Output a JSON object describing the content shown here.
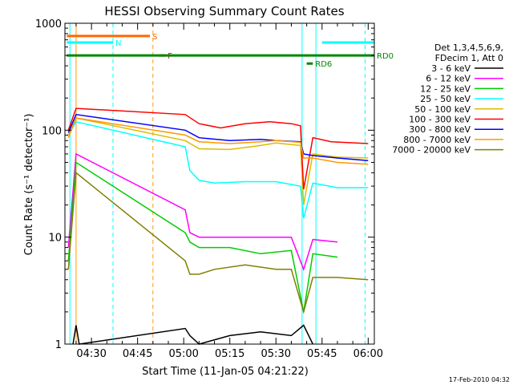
{
  "chart_data": {
    "type": "line",
    "title": "HESSI Observing Summary Count Rates",
    "xlabel": "Start Time (11-Jan-05 04:21:22)",
    "ylabel": "Count Rate (s⁻¹ detector⁻¹)",
    "x_scale": "time",
    "x_range": [
      "04:21:22",
      "06:02:00"
    ],
    "x_ticks": [
      "04:30",
      "04:45",
      "05:00",
      "05:15",
      "05:30",
      "05:45",
      "06:00"
    ],
    "y_scale": "log",
    "y_range": [
      1,
      1000
    ],
    "y_ticks": [
      "1",
      "10",
      "100",
      "1000"
    ],
    "legend_header": [
      "Det 1,3,4,5,6,9,",
      "FDecim 1, Att 0"
    ],
    "legend_position": "right",
    "series": [
      {
        "name": "3 - 6 keV",
        "color": "#000000",
        "points": [
          [
            "04:24:00",
            1.0
          ],
          [
            "04:25:00",
            1.5
          ],
          [
            "04:26:00",
            1.0
          ],
          [
            "05:00:30",
            1.4
          ],
          [
            "05:02:00",
            1.2
          ],
          [
            "05:05:00",
            1.0
          ],
          [
            "05:15:00",
            1.2
          ],
          [
            "05:25:00",
            1.3
          ],
          [
            "05:35:00",
            1.2
          ],
          [
            "05:39:00",
            1.5
          ],
          [
            "05:42:00",
            1.0
          ]
        ]
      },
      {
        "name": "6 - 12 keV",
        "color": "#ff00ff",
        "points": [
          [
            "04:22:30",
            8
          ],
          [
            "04:25:00",
            60
          ],
          [
            "05:00:30",
            18
          ],
          [
            "05:02:00",
            11
          ],
          [
            "05:05:00",
            10
          ],
          [
            "05:15:00",
            10
          ],
          [
            "05:25:00",
            10
          ],
          [
            "05:35:00",
            10
          ],
          [
            "05:39:00",
            5
          ],
          [
            "05:42:00",
            9.5
          ],
          [
            "05:50:00",
            9
          ]
        ]
      },
      {
        "name": "12 - 25 keV",
        "color": "#00cc00",
        "points": [
          [
            "04:22:30",
            6
          ],
          [
            "04:25:00",
            50
          ],
          [
            "05:00:30",
            11
          ],
          [
            "05:02:00",
            9
          ],
          [
            "05:05:00",
            8
          ],
          [
            "05:15:00",
            8
          ],
          [
            "05:25:00",
            7
          ],
          [
            "05:35:00",
            7.5
          ],
          [
            "05:39:00",
            2
          ],
          [
            "05:42:00",
            7
          ],
          [
            "05:50:00",
            6.5
          ]
        ]
      },
      {
        "name": "25 - 50 keV",
        "color": "#00ffff",
        "points": [
          [
            "04:22:30",
            90
          ],
          [
            "04:25:00",
            120
          ],
          [
            "05:00:30",
            70
          ],
          [
            "05:02:00",
            42
          ],
          [
            "05:05:00",
            34
          ],
          [
            "05:10:00",
            32
          ],
          [
            "05:20:00",
            33
          ],
          [
            "05:30:00",
            33
          ],
          [
            "05:38:00",
            30
          ],
          [
            "05:39:00",
            15
          ],
          [
            "05:42:00",
            32
          ],
          [
            "05:50:00",
            29
          ],
          [
            "06:00:00",
            29
          ]
        ]
      },
      {
        "name": "50 - 100 keV",
        "color": "#ddbb00",
        "points": [
          [
            "04:22:30",
            90
          ],
          [
            "04:25:00",
            130
          ],
          [
            "05:00:30",
            80
          ],
          [
            "05:05:00",
            67
          ],
          [
            "05:15:00",
            66
          ],
          [
            "05:25:00",
            72
          ],
          [
            "05:30:00",
            76
          ],
          [
            "05:38:00",
            72
          ],
          [
            "05:39:00",
            20
          ],
          [
            "05:42:00",
            60
          ],
          [
            "05:50:00",
            56
          ],
          [
            "06:00:00",
            55
          ]
        ]
      },
      {
        "name": "100 - 300 keV",
        "color": "#ff0000",
        "points": [
          [
            "04:22:30",
            100
          ],
          [
            "04:25:00",
            160
          ],
          [
            "05:00:30",
            140
          ],
          [
            "05:05:00",
            115
          ],
          [
            "05:12:00",
            105
          ],
          [
            "05:20:00",
            115
          ],
          [
            "05:28:00",
            120
          ],
          [
            "05:35:00",
            115
          ],
          [
            "05:38:00",
            110
          ],
          [
            "05:39:00",
            28
          ],
          [
            "05:42:00",
            85
          ],
          [
            "05:48:00",
            78
          ],
          [
            "06:00:00",
            75
          ]
        ]
      },
      {
        "name": "300 - 800 keV",
        "color": "#0000ff",
        "points": [
          [
            "04:22:30",
            95
          ],
          [
            "04:25:00",
            140
          ],
          [
            "05:00:30",
            100
          ],
          [
            "05:05:00",
            85
          ],
          [
            "05:15:00",
            80
          ],
          [
            "05:25:00",
            82
          ],
          [
            "05:30:00",
            80
          ],
          [
            "05:38:00",
            78
          ],
          [
            "05:39:00",
            60
          ],
          [
            "05:42:00",
            58
          ],
          [
            "05:50:00",
            55
          ],
          [
            "06:00:00",
            52
          ]
        ]
      },
      {
        "name": "800 - 7000 keV",
        "color": "#ff9900",
        "points": [
          [
            "04:22:30",
            85
          ],
          [
            "04:25:00",
            130
          ],
          [
            "05:00:30",
            90
          ],
          [
            "05:05:00",
            78
          ],
          [
            "05:15:00",
            75
          ],
          [
            "05:25:00",
            78
          ],
          [
            "05:30:00",
            80
          ],
          [
            "05:38:00",
            77
          ],
          [
            "05:39:00",
            55
          ],
          [
            "05:42:00",
            55
          ],
          [
            "05:50:00",
            50
          ],
          [
            "06:00:00",
            48
          ]
        ]
      },
      {
        "name": "7000 - 20000 keV",
        "color": "#808000",
        "points": [
          [
            "04:22:30",
            5
          ],
          [
            "04:25:00",
            40
          ],
          [
            "05:00:30",
            6
          ],
          [
            "05:02:00",
            4.5
          ],
          [
            "05:05:00",
            4.5
          ],
          [
            "05:10:00",
            5
          ],
          [
            "05:20:00",
            5.5
          ],
          [
            "05:30:00",
            5
          ],
          [
            "05:35:00",
            5
          ],
          [
            "05:39:00",
            2
          ],
          [
            "05:42:00",
            4.2
          ],
          [
            "05:50:00",
            4.2
          ],
          [
            "06:00:00",
            4
          ]
        ]
      }
    ],
    "flags": [
      {
        "label": "S",
        "color": "#ff6600",
        "from": "04:22:00",
        "to": "04:49:00",
        "y": 760
      },
      {
        "label": "N",
        "color": "#00ffff",
        "from": "04:22:00",
        "to": "04:37:00",
        "y": 660
      },
      {
        "label": "F",
        "color": "#ff0000",
        "from": "04:52:00",
        "to": "04:54:00",
        "y": 500
      },
      {
        "label": "RD0",
        "color": "#008800",
        "from": "04:22:00",
        "to": "06:02:00",
        "y": 500
      },
      {
        "label": "RD6",
        "color": "#008800",
        "from": "05:40:00",
        "to": "05:42:00",
        "y": 420
      },
      {
        "label": "",
        "color": "#00ffff",
        "from": "05:45:00",
        "to": "06:02:00",
        "y": 660
      }
    ],
    "markers": [
      {
        "time": "04:23:00",
        "color": "#00ffff",
        "style": "solid"
      },
      {
        "time": "04:25:00",
        "color": "#ff9900",
        "style": "solid"
      },
      {
        "time": "04:37:00",
        "color": "#00ffff",
        "style": "dashed"
      },
      {
        "time": "04:50:00",
        "color": "#ff9900",
        "style": "dashed"
      },
      {
        "time": "05:38:30",
        "color": "#00ffff",
        "style": "solid"
      },
      {
        "time": "05:43:00",
        "color": "#00ffff",
        "style": "solid"
      },
      {
        "time": "05:59:00",
        "color": "#00ffff",
        "style": "dashed"
      }
    ],
    "timestamp": "17-Feb-2010 04:32"
  }
}
